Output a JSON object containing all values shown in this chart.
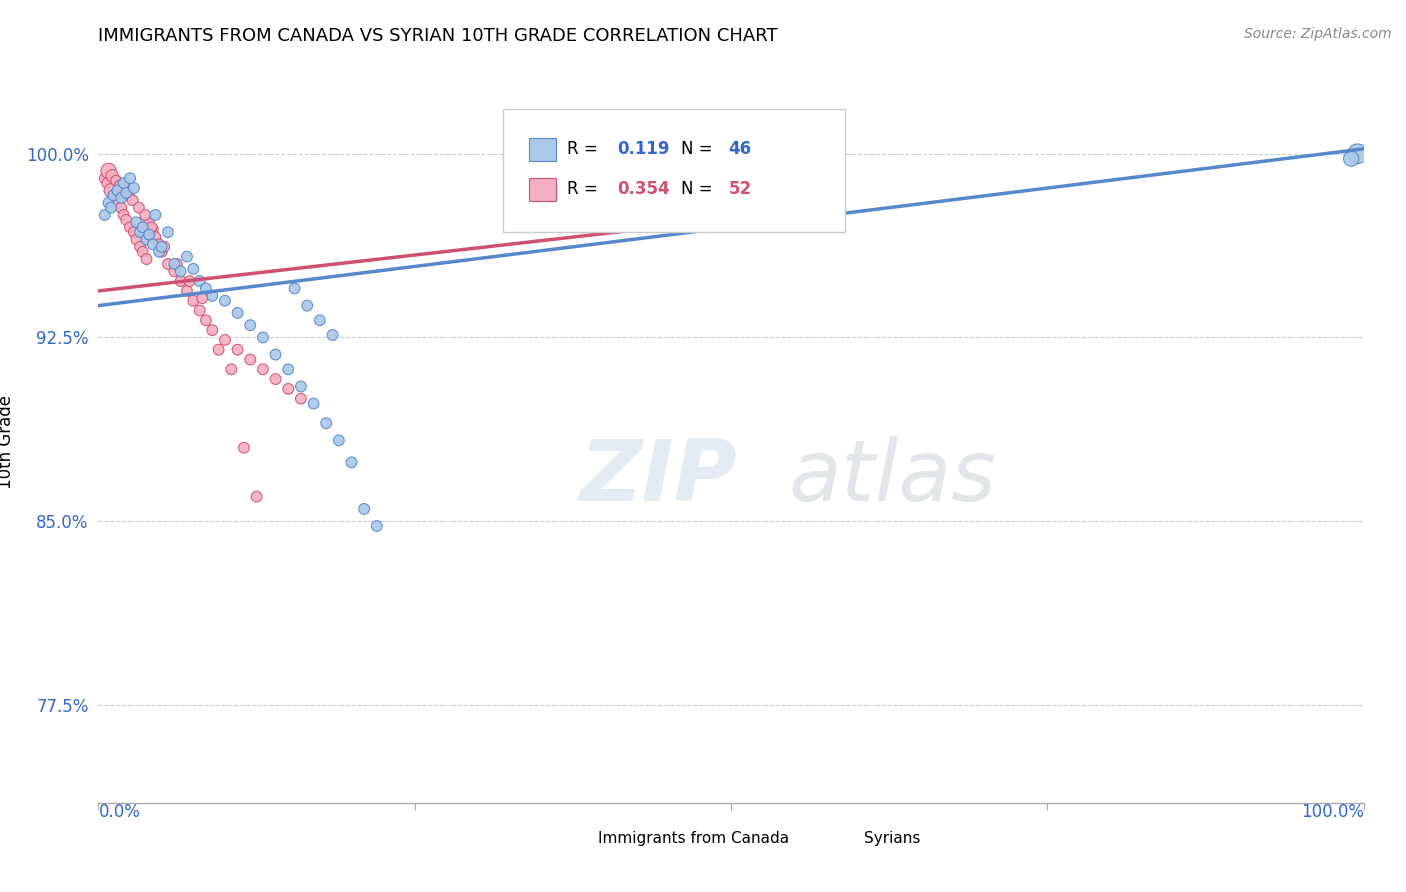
{
  "title": "IMMIGRANTS FROM CANADA VS SYRIAN 10TH GRADE CORRELATION CHART",
  "source": "Source: ZipAtlas.com",
  "ylabel": "10th Grade",
  "legend_label1": "Immigrants from Canada",
  "legend_label2": "Syrians",
  "R1": 0.119,
  "N1": 46,
  "R2": 0.354,
  "N2": 52,
  "color1": "#aac8e8",
  "color2": "#f4b0c0",
  "edge_color1": "#5588cc",
  "edge_color2": "#d05070",
  "ytick_labels": [
    "77.5%",
    "85.0%",
    "92.5%",
    "100.0%"
  ],
  "ytick_values": [
    0.775,
    0.85,
    0.925,
    1.0
  ],
  "xlim": [
    0.0,
    1.0
  ],
  "ylim": [
    0.735,
    1.03
  ],
  "watermark_zip": "ZIP",
  "watermark_atlas": "atlas",
  "blue_trend_x": [
    0.0,
    1.0
  ],
  "blue_trend_y": [
    0.938,
    1.002
  ],
  "pink_trend_x": [
    0.0,
    0.58
  ],
  "pink_trend_y": [
    0.944,
    0.978
  ],
  "blue_x": [
    0.005,
    0.008,
    0.01,
    0.012,
    0.015,
    0.018,
    0.02,
    0.022,
    0.025,
    0.028,
    0.03,
    0.033,
    0.035,
    0.038,
    0.04,
    0.043,
    0.045,
    0.048,
    0.05,
    0.055,
    0.06,
    0.065,
    0.07,
    0.075,
    0.08,
    0.085,
    0.09,
    0.1,
    0.11,
    0.12,
    0.13,
    0.14,
    0.15,
    0.16,
    0.17,
    0.18,
    0.19,
    0.2,
    0.155,
    0.165,
    0.175,
    0.185,
    0.21,
    0.22,
    0.995,
    0.99
  ],
  "blue_y": [
    0.975,
    0.98,
    0.978,
    0.983,
    0.985,
    0.982,
    0.988,
    0.984,
    0.99,
    0.986,
    0.972,
    0.968,
    0.97,
    0.965,
    0.967,
    0.963,
    0.975,
    0.96,
    0.962,
    0.968,
    0.955,
    0.952,
    0.958,
    0.953,
    0.948,
    0.945,
    0.942,
    0.94,
    0.935,
    0.93,
    0.925,
    0.918,
    0.912,
    0.905,
    0.898,
    0.89,
    0.883,
    0.874,
    0.945,
    0.938,
    0.932,
    0.926,
    0.855,
    0.848,
    1.0,
    0.998
  ],
  "blue_sizes": [
    60,
    60,
    60,
    60,
    60,
    60,
    60,
    60,
    60,
    60,
    60,
    60,
    60,
    60,
    60,
    60,
    60,
    60,
    60,
    60,
    60,
    60,
    60,
    60,
    60,
    60,
    60,
    60,
    60,
    60,
    60,
    60,
    60,
    60,
    60,
    60,
    60,
    60,
    60,
    60,
    60,
    60,
    60,
    60,
    200,
    120
  ],
  "pink_x": [
    0.005,
    0.007,
    0.01,
    0.012,
    0.015,
    0.018,
    0.02,
    0.022,
    0.025,
    0.028,
    0.03,
    0.033,
    0.035,
    0.038,
    0.04,
    0.043,
    0.045,
    0.048,
    0.05,
    0.055,
    0.06,
    0.065,
    0.07,
    0.075,
    0.08,
    0.085,
    0.09,
    0.1,
    0.11,
    0.12,
    0.13,
    0.14,
    0.15,
    0.16,
    0.008,
    0.011,
    0.014,
    0.017,
    0.021,
    0.024,
    0.027,
    0.032,
    0.037,
    0.042,
    0.052,
    0.062,
    0.072,
    0.082,
    0.095,
    0.105,
    0.115,
    0.125
  ],
  "pink_y": [
    0.99,
    0.988,
    0.985,
    0.983,
    0.98,
    0.978,
    0.975,
    0.973,
    0.97,
    0.968,
    0.965,
    0.962,
    0.96,
    0.957,
    0.972,
    0.969,
    0.966,
    0.963,
    0.96,
    0.955,
    0.952,
    0.948,
    0.944,
    0.94,
    0.936,
    0.932,
    0.928,
    0.924,
    0.92,
    0.916,
    0.912,
    0.908,
    0.904,
    0.9,
    0.993,
    0.991,
    0.989,
    0.987,
    0.985,
    0.983,
    0.981,
    0.978,
    0.975,
    0.97,
    0.962,
    0.955,
    0.948,
    0.941,
    0.92,
    0.912,
    0.88,
    0.86
  ],
  "pink_sizes": [
    60,
    60,
    100,
    60,
    60,
    60,
    60,
    60,
    60,
    60,
    60,
    60,
    60,
    60,
    60,
    60,
    60,
    60,
    60,
    60,
    60,
    60,
    60,
    60,
    60,
    60,
    60,
    60,
    60,
    60,
    60,
    60,
    60,
    60,
    120,
    80,
    60,
    60,
    60,
    60,
    60,
    60,
    60,
    60,
    60,
    60,
    60,
    60,
    60,
    60,
    60,
    60
  ]
}
